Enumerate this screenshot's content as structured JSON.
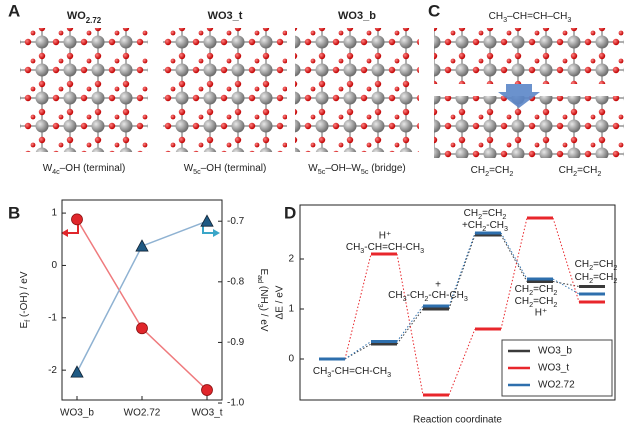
{
  "panel_a": {
    "label": "A",
    "structures": [
      {
        "title": [
          "WO",
          "2.72"
        ],
        "caption": [
          "W",
          "4c",
          "–OH (terminal)"
        ]
      },
      {
        "title": "WO3_t",
        "caption": [
          "W",
          "5c",
          "–OH (terminal)"
        ]
      },
      {
        "title": "WO3_b",
        "caption": [
          "W",
          "5c",
          "–OH–W",
          "5c",
          " (bridge)"
        ]
      }
    ]
  },
  "panel_c": {
    "label": "C",
    "top_label": [
      "CH",
      "3",
      "–CH=CH–CH",
      "3"
    ],
    "bottom_labels": [
      [
        "CH",
        "2",
        "=CH",
        "2"
      ],
      [
        "CH",
        "2",
        "=CH",
        "2"
      ]
    ]
  },
  "chart_data": [
    {
      "type": "line",
      "label": "B",
      "categories": [
        "WO3_b",
        "WO2.72",
        "WO3_t"
      ],
      "y_label": [
        "E",
        "f",
        " (-OH) / eV"
      ],
      "y2_label": [
        "E",
        "ad",
        " (NH",
        "3",
        ") / eV"
      ],
      "ylim": [
        -2.57,
        1.25
      ],
      "yticks": [
        -2,
        -1,
        0,
        1
      ],
      "y2lim": [
        -0.995,
        -0.665
      ],
      "y2ticks": [
        {
          "value": -1,
          "label": "-1.0"
        },
        -0.9,
        -0.8,
        -0.7
      ],
      "series": [
        {
          "color": "#e0262b",
          "line_color": "#ef7a7d",
          "marker": "circle",
          "values": [
            0.88,
            -1.2,
            -2.38
          ]
        },
        {
          "color": "#1f5a84",
          "line_color": "#8fb2d2",
          "marker": "triangle",
          "axis": "y2",
          "values": [
            -0.949,
            -0.741,
            -0.7
          ]
        }
      ]
    },
    {
      "type": "energy",
      "label": "D",
      "y_label": "ΔE / eV",
      "x_label": "Reaction coordinate",
      "ylim": [
        -0.82,
        3.08
      ],
      "yticks": [
        0,
        1,
        2
      ],
      "legend": "lower right",
      "series": [
        {
          "name": "WO3_b",
          "color": "#3a3a3a",
          "values": [
            0,
            0.3,
            1.0,
            2.48,
            1.55,
            1.45
          ]
        },
        {
          "name": "WO3_t",
          "color": "#e8262b",
          "values": [
            0,
            2.1,
            -0.72,
            0.6,
            2.82,
            1.14
          ]
        },
        {
          "name": "WO2.72",
          "color": "#2e6fad",
          "values": [
            0,
            0.35,
            1.06,
            2.52,
            1.6,
            1.3
          ]
        }
      ],
      "annotations": [
        [
          "CH",
          "3",
          "-CH=CH-CH",
          "3"
        ],
        "H⁺",
        [
          "CH",
          "3",
          "-CH=CH-CH",
          "3"
        ],
        "+",
        [
          "CH",
          "3",
          "-CH",
          "2",
          "-CH-CH",
          "3"
        ],
        [
          "CH",
          "2",
          "=CH",
          "2"
        ],
        [
          "+CH",
          "2",
          "-CH",
          "3"
        ],
        [
          "CH",
          "2",
          "=CH",
          "2"
        ],
        [
          "CH",
          "2",
          "=CH",
          "2"
        ],
        "H⁺",
        [
          "CH",
          "2",
          "=CH",
          "2"
        ],
        [
          "CH",
          "2",
          "=CH",
          "2"
        ]
      ]
    }
  ]
}
